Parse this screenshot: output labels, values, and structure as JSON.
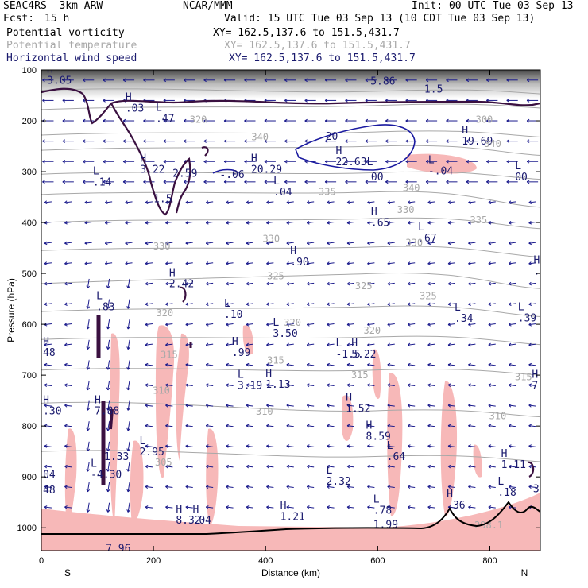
{
  "header": {
    "model": "SEAC4RS  3km ARW",
    "org": "NCAR/MMM",
    "init": "Init: 00 UTC Tue 03 Sep 13",
    "fcst_label": "Fcst:",
    "fcst_value": "15 h",
    "valid": "Valid: 15 UTC Tue 03 Sep 13 (10 CDT Tue 03 Sep 13)",
    "fields": [
      {
        "name": "Potential vorticity",
        "xy": "XY= 162.5,137.6 to 151.5,431.7",
        "color": "#000000"
      },
      {
        "name": "Potential temperature",
        "xy": "XY= 162.5,137.6 to 151.5,431.7",
        "color": "#a8a8a8"
      },
      {
        "name": "Horizontal wind speed",
        "xy": "XY= 162.5,137.6 to 151.5,431.7",
        "color": "#1a1a6e"
      }
    ]
  },
  "chart_data": {
    "type": "cross-section",
    "xlabel": "Distance (km)",
    "ylabel": "Pressure (hPa)",
    "xlim": [
      0,
      890
    ],
    "ylim": [
      1045,
      100
    ],
    "xticks": [
      0,
      200,
      400,
      600,
      800
    ],
    "yticks": [
      100,
      200,
      300,
      400,
      500,
      600,
      700,
      800,
      900,
      1000
    ],
    "x_endpoint_labels": {
      "left": "S",
      "right": "N"
    },
    "colors": {
      "pv_contour": "#3a1040",
      "pv_shade": "#f7b8b8",
      "theta_contour": "#a8a8a8",
      "wind_contour": "#1a1aa0",
      "wind_vectors": "#1a1a8c",
      "terrain": "#000000"
    },
    "theta_labels": [
      {
        "x": 280,
        "p": 198,
        "text": "320"
      },
      {
        "x": 790,
        "p": 198,
        "text": "300"
      },
      {
        "x": 390,
        "p": 232,
        "text": "340"
      },
      {
        "x": 805,
        "p": 245,
        "text": "340"
      },
      {
        "x": 660,
        "p": 332,
        "text": "340"
      },
      {
        "x": 510,
        "p": 340,
        "text": "335"
      },
      {
        "x": 780,
        "p": 395,
        "text": "335"
      },
      {
        "x": 650,
        "p": 375,
        "text": "330"
      },
      {
        "x": 665,
        "p": 440,
        "text": "330"
      },
      {
        "x": 410,
        "p": 432,
        "text": "330"
      },
      {
        "x": 215,
        "p": 447,
        "text": "330"
      },
      {
        "x": 418,
        "p": 505,
        "text": "325"
      },
      {
        "x": 575,
        "p": 525,
        "text": "325"
      },
      {
        "x": 690,
        "p": 544,
        "text": "325"
      },
      {
        "x": 220,
        "p": 578,
        "text": "320"
      },
      {
        "x": 448,
        "p": 597,
        "text": "320"
      },
      {
        "x": 590,
        "p": 612,
        "text": "320"
      },
      {
        "x": 228,
        "p": 660,
        "text": "315"
      },
      {
        "x": 418,
        "p": 671,
        "text": "315"
      },
      {
        "x": 568,
        "p": 700,
        "text": "315"
      },
      {
        "x": 860,
        "p": 704,
        "text": "315"
      },
      {
        "x": 214,
        "p": 730,
        "text": "310"
      },
      {
        "x": 398,
        "p": 772,
        "text": "310"
      },
      {
        "x": 814,
        "p": 780,
        "text": "310"
      },
      {
        "x": 218,
        "p": 872,
        "text": "305"
      },
      {
        "x": 798,
        "p": 995,
        "text": "298.1"
      }
    ],
    "extrema": [
      {
        "x": 10,
        "p": 110,
        "letter": "H",
        "value": "3.05"
      },
      {
        "x": 587,
        "p": 112,
        "letter": "",
        "value": "5.86"
      },
      {
        "x": 683,
        "p": 127,
        "letter": "",
        "value": "1.5"
      },
      {
        "x": 150,
        "p": 165,
        "letter": "H",
        "value": ".03"
      },
      {
        "x": 204,
        "p": 185,
        "letter": "L",
        "value": ".47"
      },
      {
        "x": 507,
        "p": 220,
        "letter": "",
        "value": "20"
      },
      {
        "x": 750,
        "p": 230,
        "letter": "H",
        "value": "19.69"
      },
      {
        "x": 525,
        "p": 270,
        "letter": "H",
        "value": "22.63L"
      },
      {
        "x": 588,
        "p": 300,
        "letter": "",
        "value": "00"
      },
      {
        "x": 690,
        "p": 288,
        "letter": "L",
        "value": "-.04"
      },
      {
        "x": 845,
        "p": 300,
        "letter": "L",
        "value": "00"
      },
      {
        "x": 318,
        "p": 295,
        "letter": "",
        "value": "-.06"
      },
      {
        "x": 374,
        "p": 285,
        "letter": "H",
        "value": "20.29"
      },
      {
        "x": 176,
        "p": 285,
        "letter": "H",
        "value": "3.22"
      },
      {
        "x": 234,
        "p": 293,
        "letter": "",
        "value": "2.59"
      },
      {
        "x": 92,
        "p": 310,
        "letter": "L",
        "value": ".14"
      },
      {
        "x": 200,
        "p": 343,
        "letter": "",
        "value": "1.5"
      },
      {
        "x": 414,
        "p": 330,
        "letter": "L",
        "value": ".04"
      },
      {
        "x": 588,
        "p": 390,
        "letter": "H",
        "value": ".65"
      },
      {
        "x": 672,
        "p": 420,
        "letter": "L",
        "value": ".67"
      },
      {
        "x": 444,
        "p": 467,
        "letter": "H",
        "value": ".90"
      },
      {
        "x": 878,
        "p": 485,
        "letter": "H",
        "value": ".8"
      },
      {
        "x": 228,
        "p": 510,
        "letter": "H",
        "value": "2.42"
      },
      {
        "x": 98,
        "p": 555,
        "letter": "L",
        "value": ".83"
      },
      {
        "x": 326,
        "p": 570,
        "letter": "L",
        "value": ".10"
      },
      {
        "x": 737,
        "p": 578,
        "letter": "L",
        "value": ".34"
      },
      {
        "x": 850,
        "p": 577,
        "letter": "L",
        "value": ".39"
      },
      {
        "x": 413,
        "p": 608,
        "letter": "L",
        "value": "3.50"
      },
      {
        "x": 3,
        "p": 645,
        "letter": "H",
        "value": "48"
      },
      {
        "x": 340,
        "p": 645,
        "letter": "H",
        "value": ".99"
      },
      {
        "x": 525,
        "p": 648,
        "letter": "L",
        "value": "-1.5"
      },
      {
        "x": 553,
        "p": 648,
        "letter": "H",
        "value": "5.22"
      },
      {
        "x": 350,
        "p": 710,
        "letter": "L",
        "value": "3.19"
      },
      {
        "x": 400,
        "p": 708,
        "letter": "H",
        "value": "1.13"
      },
      {
        "x": 875,
        "p": 710,
        "letter": "H",
        "value": "7.0"
      },
      {
        "x": 3,
        "p": 760,
        "letter": "H",
        "value": ".30"
      },
      {
        "x": 95,
        "p": 760,
        "letter": "H",
        "value": "7.88"
      },
      {
        "x": 543,
        "p": 755,
        "letter": "H",
        "value": "1.52"
      },
      {
        "x": 579,
        "p": 810,
        "letter": "H",
        "value": "8.59"
      },
      {
        "x": 616,
        "p": 850,
        "letter": "L",
        "value": ".64"
      },
      {
        "x": 175,
        "p": 840,
        "letter": "L",
        "value": "2.95"
      },
      {
        "x": 112,
        "p": 850,
        "letter": "",
        "value": "1.33"
      },
      {
        "x": 820,
        "p": 865,
        "letter": "H",
        "value": "1.11"
      },
      {
        "x": 3,
        "p": 885,
        "letter": "",
        "value": "04"
      },
      {
        "x": 88,
        "p": 885,
        "letter": "L",
        "value": "-4.30"
      },
      {
        "x": 508,
        "p": 898,
        "letter": "L",
        "value": "2.32"
      },
      {
        "x": 3,
        "p": 915,
        "letter": "",
        "value": "48"
      },
      {
        "x": 814,
        "p": 920,
        "letter": "L",
        "value": ".18"
      },
      {
        "x": 877,
        "p": 913,
        "letter": "",
        "value": "30"
      },
      {
        "x": 723,
        "p": 945,
        "letter": "H",
        "value": ".36"
      },
      {
        "x": 592,
        "p": 955,
        "letter": "L",
        "value": ".78"
      },
      {
        "x": 592,
        "p": 983,
        "letter": "",
        "value": "1.99"
      },
      {
        "x": 426,
        "p": 968,
        "letter": "H",
        "value": "1.21"
      },
      {
        "x": 240,
        "p": 975,
        "letter": "H",
        "value": "8.32"
      },
      {
        "x": 270,
        "p": 975,
        "letter": "H",
        "value": ".04"
      },
      {
        "x": 115,
        "p": 1030,
        "letter": "",
        "value": "7.96"
      }
    ]
  }
}
